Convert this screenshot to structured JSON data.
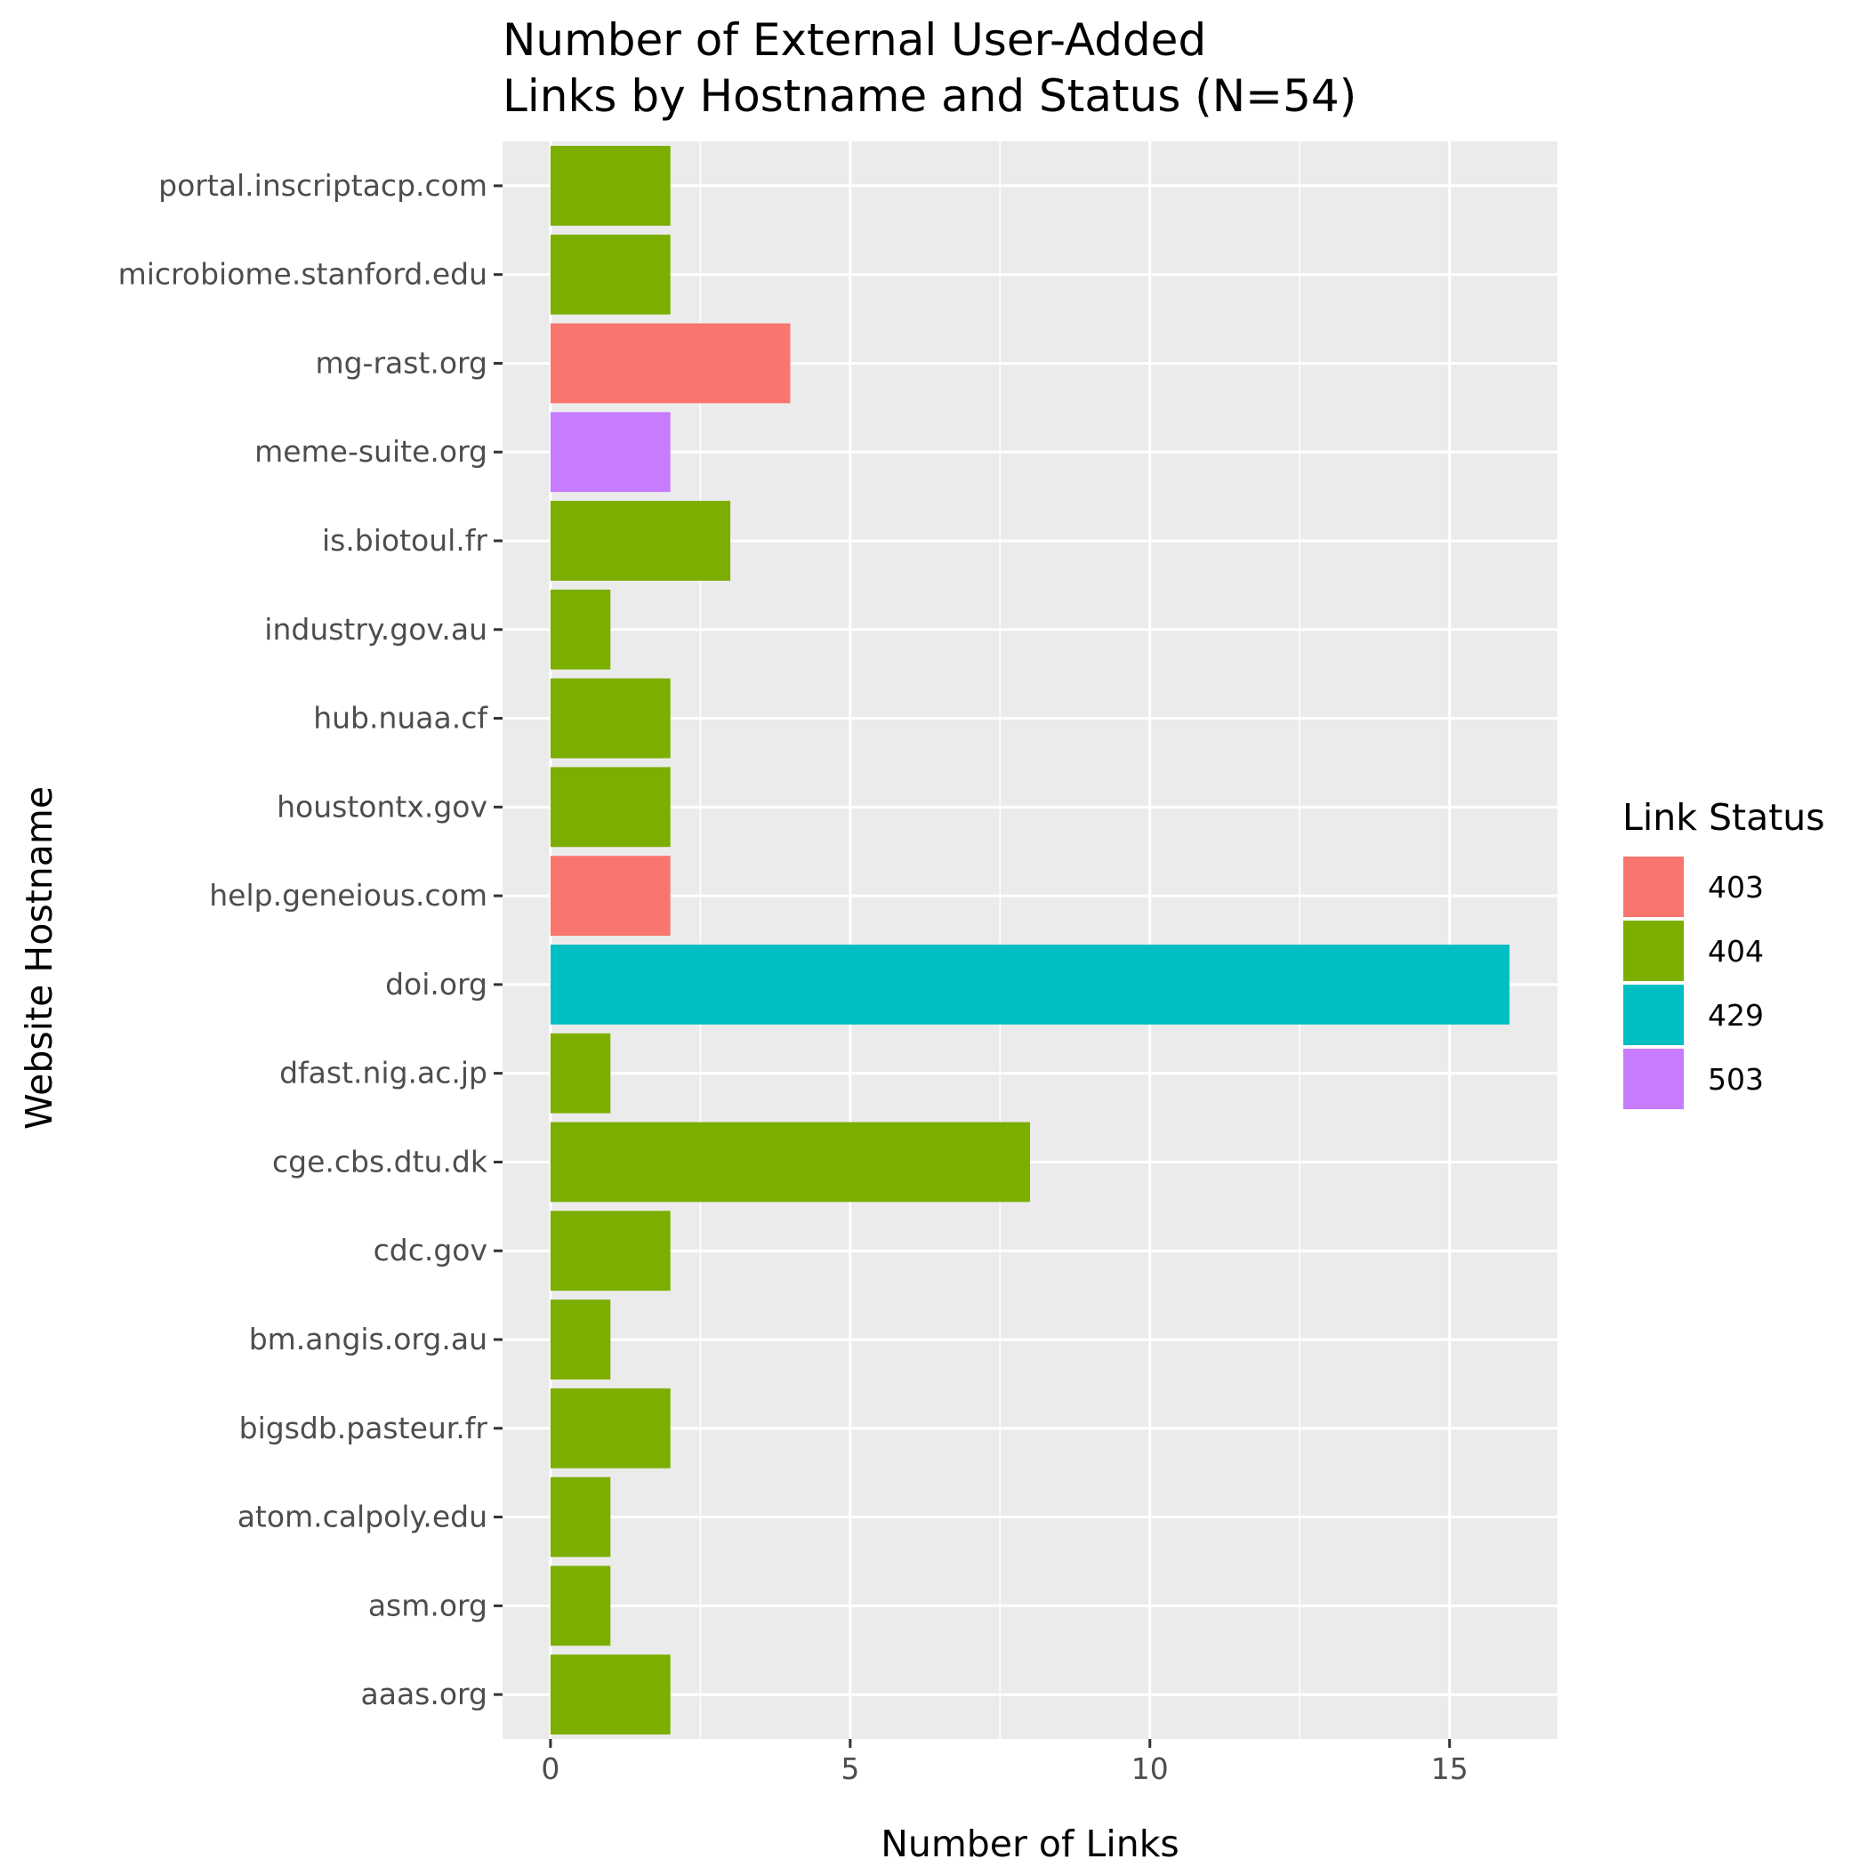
{
  "chart_data": {
    "type": "bar",
    "orientation": "horizontal",
    "title": [
      "Number of External User-Added",
      "Links by Hostname and Status (N=54)"
    ],
    "xlabel": "Number of Links",
    "ylabel": "Website Hostname",
    "xlim": [
      -0.8,
      16.8
    ],
    "xticks": [
      0,
      5,
      10,
      15
    ],
    "grid": true,
    "legend": {
      "title": "Link Status",
      "placement": "right",
      "entries": [
        {
          "label": "403",
          "color": "#F8766D"
        },
        {
          "label": "404",
          "color": "#7CAE00"
        },
        {
          "label": "429",
          "color": "#00BFC4"
        },
        {
          "label": "503",
          "color": "#C77CFF"
        }
      ]
    },
    "categories": [
      "portal.inscriptacp.com",
      "microbiome.stanford.edu",
      "mg-rast.org",
      "meme-suite.org",
      "is.biotoul.fr",
      "industry.gov.au",
      "hub.nuaa.cf",
      "houstontx.gov",
      "help.geneious.com",
      "doi.org",
      "dfast.nig.ac.jp",
      "cge.cbs.dtu.dk",
      "cdc.gov",
      "bm.angis.org.au",
      "bigsdb.pasteur.fr",
      "atom.calpoly.edu",
      "asm.org",
      "aaas.org"
    ],
    "values": [
      2,
      2,
      4,
      2,
      3,
      1,
      2,
      2,
      2,
      16,
      1,
      8,
      2,
      1,
      2,
      1,
      1,
      2
    ],
    "status": [
      "404",
      "404",
      "403",
      "503",
      "404",
      "404",
      "404",
      "404",
      "403",
      "429",
      "404",
      "404",
      "404",
      "404",
      "404",
      "404",
      "404",
      "404"
    ]
  }
}
